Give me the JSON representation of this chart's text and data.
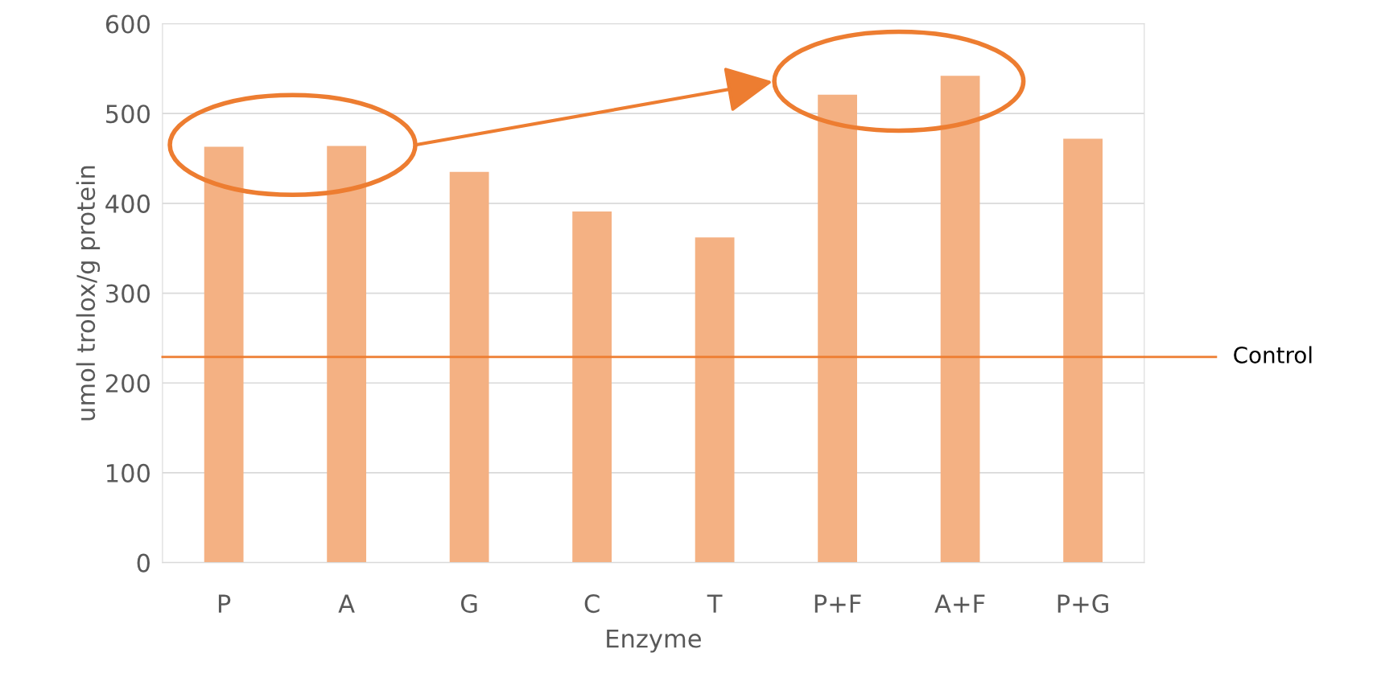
{
  "chart_data": {
    "type": "bar",
    "xlabel": "Enzyme",
    "ylabel": "umol trolox/g protein",
    "categories": [
      "P",
      "A",
      "G",
      "C",
      "T",
      "P+F",
      "A+F",
      "P+G"
    ],
    "values": [
      463,
      464,
      435,
      391,
      362,
      521,
      542,
      472
    ],
    "color": "#f4b183",
    "ylim": [
      0,
      600
    ],
    "yticks": [
      0,
      100,
      200,
      300,
      400,
      500,
      600
    ],
    "grid": "y",
    "ref_lines": [
      {
        "axis": "y",
        "value": 229,
        "label": "Control",
        "color": "#ed7d31",
        "line_style": "solid"
      }
    ]
  }
}
